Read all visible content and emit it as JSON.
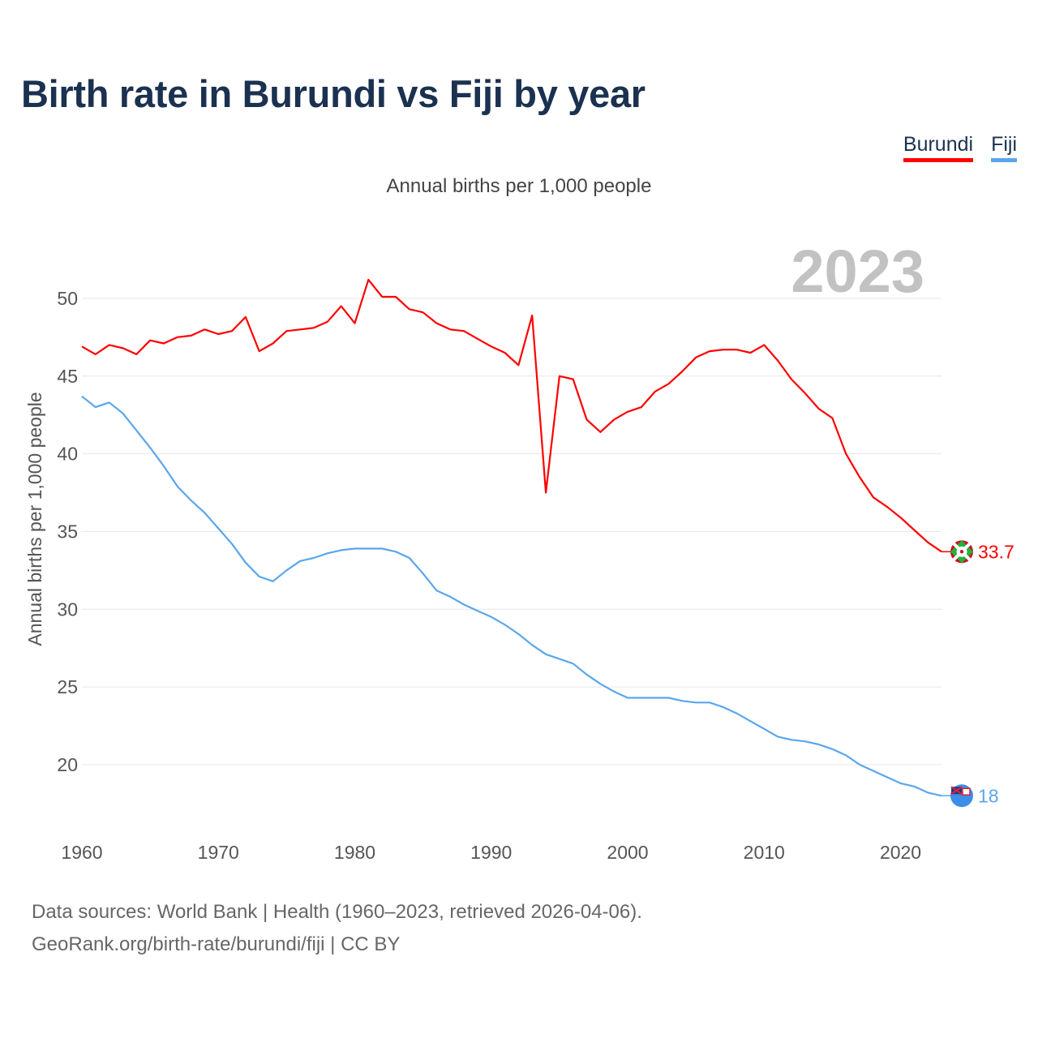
{
  "title": "Birth rate in Burundi vs Fiji by year",
  "legend": {
    "burundi": "Burundi",
    "fiji": "Fiji"
  },
  "colors": {
    "burundi": "#ff0000",
    "fiji": "#5aa6ec",
    "title": "#1b3150",
    "year_label": "#c2c2c2"
  },
  "source": {
    "line1": "Data sources: World Bank | Health (1960–2023, retrieved 2026-04-06).",
    "line2": "GeoRank.org/birth-rate/burundi/fiji | CC BY"
  },
  "chart_data": {
    "type": "line",
    "title": "Annual births per 1,000 people",
    "ylabel": "Annual births per 1,000 people",
    "xlabel": "",
    "year_label": "2023",
    "xlim": [
      1960,
      2023
    ],
    "ylim": [
      16.5,
      52.5
    ],
    "yticks": [
      20,
      25,
      30,
      35,
      40,
      45,
      50
    ],
    "xticks": [
      1960,
      1970,
      1980,
      1990,
      2000,
      2010,
      2020
    ],
    "x": [
      1960,
      1961,
      1962,
      1963,
      1964,
      1965,
      1966,
      1967,
      1968,
      1969,
      1970,
      1971,
      1972,
      1973,
      1974,
      1975,
      1976,
      1977,
      1978,
      1979,
      1980,
      1981,
      1982,
      1983,
      1984,
      1985,
      1986,
      1987,
      1988,
      1989,
      1990,
      1991,
      1992,
      1993,
      1994,
      1995,
      1996,
      1997,
      1998,
      1999,
      2000,
      2001,
      2002,
      2003,
      2004,
      2005,
      2006,
      2007,
      2008,
      2009,
      2010,
      2011,
      2012,
      2013,
      2014,
      2015,
      2016,
      2017,
      2018,
      2019,
      2020,
      2021,
      2022,
      2023
    ],
    "series": [
      {
        "name": "Burundi",
        "end_label": "33.7",
        "values": [
          46.9,
          46.4,
          47.0,
          46.8,
          46.4,
          47.3,
          47.1,
          47.5,
          47.6,
          48.0,
          47.7,
          47.9,
          48.8,
          46.6,
          47.1,
          47.9,
          48.0,
          48.1,
          48.5,
          49.5,
          48.4,
          51.2,
          50.1,
          50.1,
          49.3,
          49.1,
          48.4,
          48.0,
          47.9,
          47.4,
          46.9,
          46.5,
          45.7,
          48.9,
          37.5,
          45.0,
          44.8,
          42.2,
          41.4,
          42.2,
          42.7,
          43.0,
          44.0,
          44.5,
          45.3,
          46.2,
          46.6,
          46.7,
          46.7,
          46.5,
          47.0,
          46.0,
          44.8,
          43.9,
          42.9,
          42.3,
          40.0,
          38.5,
          37.2,
          36.6,
          35.9,
          35.1,
          34.3,
          33.7
        ]
      },
      {
        "name": "Fiji",
        "end_label": "18",
        "values": [
          43.7,
          43.0,
          43.3,
          42.6,
          41.5,
          40.4,
          39.2,
          37.9,
          37.0,
          36.2,
          35.2,
          34.2,
          33.0,
          32.1,
          31.8,
          32.5,
          33.1,
          33.3,
          33.6,
          33.8,
          33.9,
          33.9,
          33.9,
          33.7,
          33.3,
          32.3,
          31.2,
          30.8,
          30.3,
          29.9,
          29.5,
          29.0,
          28.4,
          27.7,
          27.1,
          26.8,
          26.5,
          25.8,
          25.2,
          24.7,
          24.3,
          24.3,
          24.3,
          24.3,
          24.1,
          24.0,
          24.0,
          23.7,
          23.3,
          22.8,
          22.3,
          21.8,
          21.6,
          21.5,
          21.3,
          21.0,
          20.6,
          20.0,
          19.6,
          19.2,
          18.8,
          18.6,
          18.2,
          18.0
        ]
      }
    ]
  }
}
